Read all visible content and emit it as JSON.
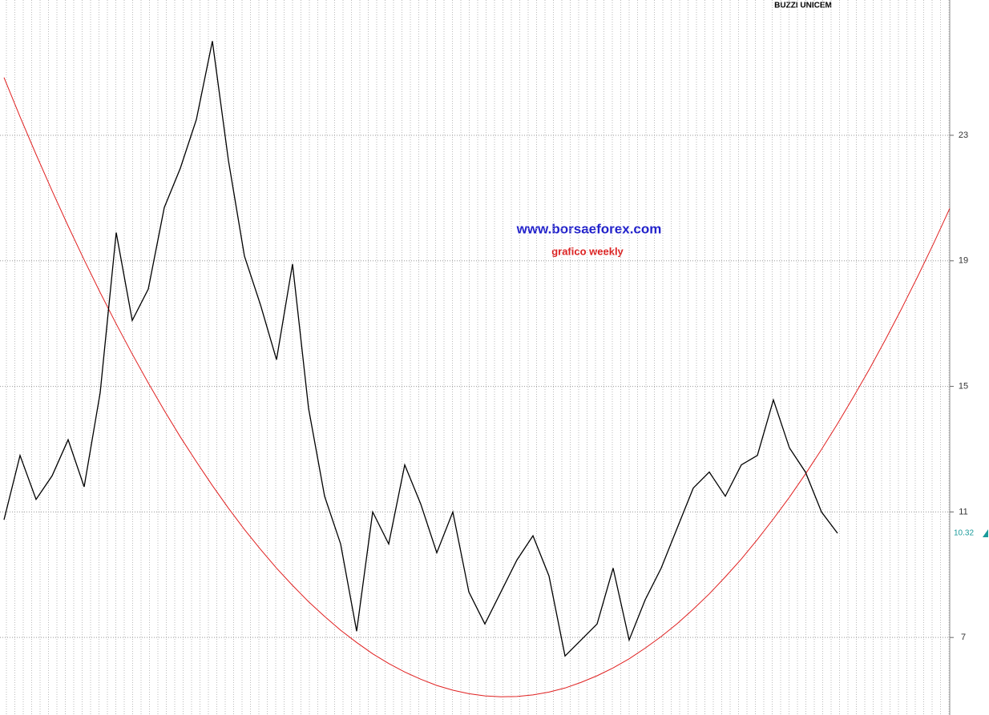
{
  "chart_data": {
    "type": "line",
    "title": "BUZZI UNICEM",
    "annotations": [
      "www.borsaeforex.com",
      "grafico weekly"
    ],
    "ylim": [
      4.53,
      27.31
    ],
    "yticks": [
      7,
      11,
      15,
      19,
      23
    ],
    "grid": true,
    "series": [
      {
        "name": "BUZZI UNICEM",
        "color": "#000000",
        "values": [
          10.75,
          12.8,
          11.4,
          12.15,
          13.3,
          11.8,
          14.8,
          19.9,
          17.1,
          18.1,
          20.7,
          21.95,
          23.5,
          26.0,
          22.2,
          19.15,
          17.6,
          15.85,
          18.9,
          14.3,
          11.5,
          9.98,
          7.2,
          11.0,
          9.98,
          12.5,
          11.25,
          9.7,
          11.0,
          8.45,
          7.43,
          8.45,
          9.47,
          10.24,
          8.96,
          6.41,
          6.92,
          7.43,
          9.21,
          6.92,
          8.2,
          9.21,
          10.49,
          11.76,
          12.27,
          11.5,
          12.5,
          12.8,
          14.57,
          13.04,
          12.27,
          11.0,
          10.32,
          null,
          null,
          null,
          null,
          null,
          null,
          null
        ]
      },
      {
        "name": "trend",
        "color": "#e02020",
        "values": [
          24.84,
          23.59,
          22.39,
          21.23,
          20.11,
          19.03,
          17.99,
          16.99,
          16.03,
          15.11,
          14.23,
          13.39,
          12.6,
          11.84,
          11.12,
          10.44,
          9.81,
          9.21,
          8.66,
          8.14,
          7.67,
          7.23,
          6.84,
          6.48,
          6.17,
          5.9,
          5.67,
          5.47,
          5.32,
          5.21,
          5.14,
          5.11,
          5.12,
          5.17,
          5.26,
          5.39,
          5.57,
          5.78,
          6.03,
          6.32,
          6.66,
          7.03,
          7.44,
          7.9,
          8.39,
          8.93,
          9.5,
          10.12,
          10.78,
          11.47,
          12.21,
          12.99,
          13.81,
          14.67,
          15.56,
          16.5,
          17.48,
          18.5,
          19.56,
          20.67
        ]
      }
    ]
  }
}
